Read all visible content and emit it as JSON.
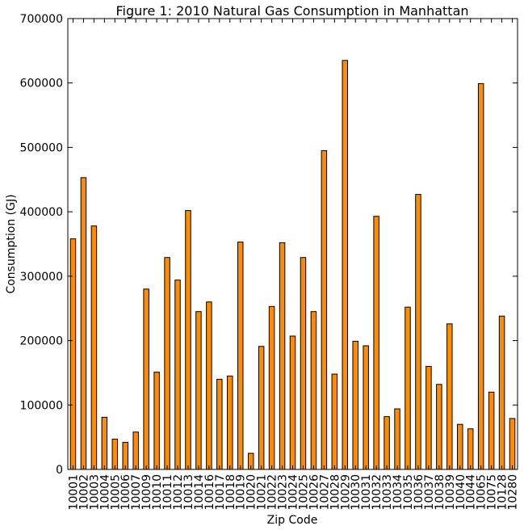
{
  "chart_data": {
    "type": "bar",
    "title": "Figure 1: 2010 Natural Gas Consumption in Manhattan",
    "xlabel": "Zip Code",
    "ylabel": "Consumption (GJ)",
    "ylim": [
      0,
      700000
    ],
    "yticks": [
      0,
      100000,
      200000,
      300000,
      400000,
      500000,
      600000,
      700000
    ],
    "grid": false,
    "bar_color": "#ff8c00",
    "bar_edge_color": "#000000",
    "categories": [
      "10001",
      "10002",
      "10003",
      "10004",
      "10005",
      "10006",
      "10007",
      "10009",
      "10010",
      "10011",
      "10012",
      "10013",
      "10014",
      "10016",
      "10017",
      "10018",
      "10019",
      "10020",
      "10021",
      "10022",
      "10023",
      "10024",
      "10025",
      "10026",
      "10027",
      "10028",
      "10029",
      "10030",
      "10031",
      "10032",
      "10033",
      "10034",
      "10035",
      "10036",
      "10037",
      "10038",
      "10039",
      "10040",
      "10044",
      "10065",
      "10075",
      "10128",
      "10280"
    ],
    "values": [
      358000,
      453000,
      378000,
      81000,
      47000,
      42000,
      58000,
      280000,
      151000,
      329000,
      294000,
      402000,
      245000,
      260000,
      140000,
      145000,
      353000,
      25000,
      191000,
      253000,
      352000,
      207000,
      329000,
      245000,
      495000,
      148000,
      635000,
      199000,
      192000,
      393000,
      82000,
      94000,
      252000,
      427000,
      160000,
      132000,
      226000,
      70000,
      63000,
      599000,
      120000,
      238000,
      79000
    ]
  }
}
